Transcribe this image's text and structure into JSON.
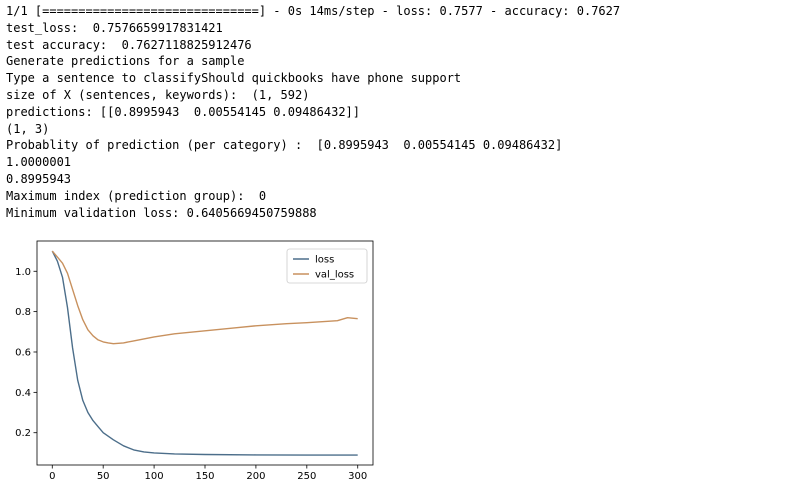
{
  "output": {
    "lines": [
      "1/1 [==============================] - 0s 14ms/step - loss: 0.7577 - accuracy: 0.7627",
      "test_loss:  0.7576659917831421",
      "test accuracy:  0.7627118825912476",
      "Generate predictions for a sample",
      "Type a sentence to classifyShould quickbooks have phone support",
      "size of X (sentences, keywords):  (1, 592)",
      "predictions: [[0.8995943  0.00554145 0.09486432]]",
      "(1, 3)",
      "Probablity of prediction (per category) :  [0.8995943  0.00554145 0.09486432]",
      "1.0000001",
      "0.8995943",
      "Maximum index (prediction group):  0",
      "Minimum validation loss: 0.6405669450759888"
    ]
  },
  "chart_data": {
    "type": "line",
    "title": "",
    "xlabel": "",
    "ylabel": "",
    "xlim": [
      -15,
      315
    ],
    "ylim": [
      0.04,
      1.15
    ],
    "xticks": [
      0,
      50,
      100,
      150,
      200,
      250,
      300
    ],
    "yticks": [
      0.2,
      0.4,
      0.6,
      0.8,
      1.0
    ],
    "ytick_labels": [
      "0.2",
      "0.4",
      "0.6",
      "0.8",
      "1.0"
    ],
    "grid": false,
    "legend_position": "upper right",
    "series": [
      {
        "name": "loss",
        "color": "#4c6e8a",
        "x": [
          0,
          5,
          10,
          15,
          20,
          25,
          30,
          35,
          40,
          45,
          50,
          60,
          70,
          80,
          90,
          100,
          120,
          150,
          200,
          250,
          300
        ],
        "y": [
          1.1,
          1.05,
          0.97,
          0.82,
          0.62,
          0.46,
          0.36,
          0.3,
          0.26,
          0.23,
          0.2,
          0.165,
          0.135,
          0.115,
          0.105,
          0.1,
          0.095,
          0.092,
          0.09,
          0.089,
          0.089
        ]
      },
      {
        "name": "val_loss",
        "color": "#c8915e",
        "x": [
          0,
          5,
          10,
          15,
          20,
          25,
          30,
          35,
          40,
          45,
          50,
          55,
          60,
          70,
          80,
          90,
          100,
          120,
          150,
          180,
          200,
          230,
          250,
          280,
          290,
          300
        ],
        "y": [
          1.1,
          1.07,
          1.04,
          0.99,
          0.91,
          0.83,
          0.76,
          0.71,
          0.68,
          0.66,
          0.65,
          0.645,
          0.641,
          0.645,
          0.655,
          0.665,
          0.675,
          0.69,
          0.705,
          0.72,
          0.73,
          0.74,
          0.745,
          0.755,
          0.77,
          0.765
        ]
      }
    ]
  }
}
